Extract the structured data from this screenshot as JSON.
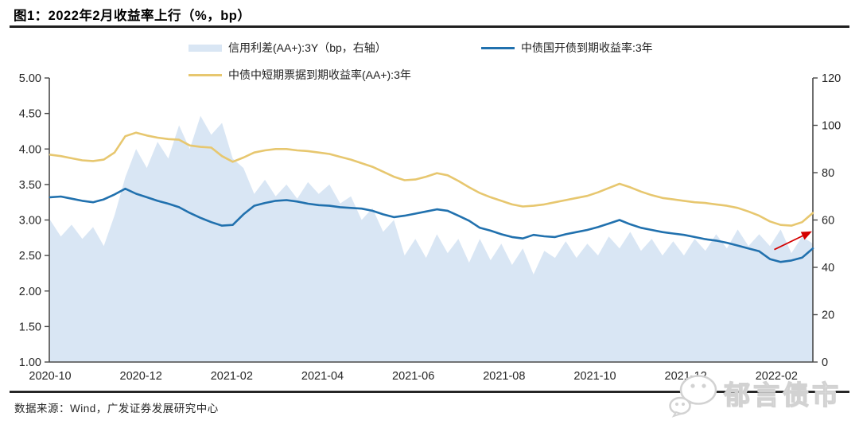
{
  "header": {
    "title": "图1：2022年2月收益率上行（%，bp）"
  },
  "legend": [
    {
      "id": "spread",
      "label": "信用利差(AA+):3Y（bp，右轴）",
      "swatch": "area",
      "color": "#d9e6f4"
    },
    {
      "id": "cdb",
      "label": "中债国开债到期收益率:3年",
      "swatch": "line",
      "color": "#2171ae"
    },
    {
      "id": "mtn",
      "label": "中债中短期票据到期收益率(AA+):3年",
      "swatch": "line",
      "color": "#e7c76f"
    }
  ],
  "footer": {
    "source": "数据来源：Wind，广发证券发展研究中心",
    "watermark": "郁言债市"
  },
  "chart_data": {
    "type": "area+line combo",
    "title": "2022年2月收益率上行（%，bp）",
    "x_tick_labels": [
      "2020-10",
      "2020-12",
      "2021-02",
      "2021-04",
      "2021-06",
      "2021-08",
      "2021-10",
      "2021-12",
      "2022-02"
    ],
    "x_range_months": [
      0,
      16.8
    ],
    "left_axis": {
      "ticks": [
        "5.00",
        "4.50",
        "4.00",
        "3.50",
        "3.00",
        "2.50",
        "2.00",
        "1.50",
        "1.00"
      ],
      "min": 1.0,
      "max": 5.0
    },
    "right_axis": {
      "ticks": [
        "120",
        "100",
        "80",
        "60",
        "40",
        "20",
        "0"
      ],
      "min": 0,
      "max": 120
    },
    "grid": "off",
    "legend_position": "top",
    "axis_color": "#4a4a4a",
    "label_color": "#262626",
    "series": [
      {
        "name": "信用利差(AA+):3Y（bp，右轴）",
        "type": "area",
        "axis": "right",
        "color": "#d9e6f4",
        "values": [
          60,
          53,
          58,
          52,
          57,
          49,
          62,
          78,
          90,
          82,
          93,
          86,
          100,
          90,
          104,
          96,
          101,
          86,
          82,
          71,
          77,
          70,
          75,
          69,
          76,
          71,
          75,
          67,
          70,
          60,
          65,
          55,
          60,
          45,
          52,
          44,
          54,
          46,
          52,
          42,
          52,
          43,
          50,
          41,
          48,
          37,
          47,
          44,
          51,
          44,
          50,
          45,
          53,
          48,
          55,
          47,
          52,
          45,
          51,
          45,
          52,
          47,
          54,
          48,
          56,
          49,
          54,
          49,
          56,
          46,
          53,
          50
        ]
      },
      {
        "name": "中债国开债到期收益率:3年",
        "type": "line",
        "axis": "left",
        "color": "#2171ae",
        "values": [
          3.32,
          3.33,
          3.3,
          3.27,
          3.25,
          3.29,
          3.36,
          3.44,
          3.37,
          3.32,
          3.27,
          3.23,
          3.18,
          3.1,
          3.03,
          2.97,
          2.92,
          2.93,
          3.08,
          3.2,
          3.24,
          3.27,
          3.28,
          3.26,
          3.23,
          3.21,
          3.2,
          3.18,
          3.17,
          3.16,
          3.13,
          3.08,
          3.04,
          3.06,
          3.09,
          3.12,
          3.15,
          3.13,
          3.06,
          2.99,
          2.89,
          2.85,
          2.8,
          2.76,
          2.74,
          2.79,
          2.77,
          2.76,
          2.8,
          2.83,
          2.86,
          2.9,
          2.95,
          3.0,
          2.94,
          2.89,
          2.86,
          2.83,
          2.81,
          2.79,
          2.76,
          2.73,
          2.71,
          2.68,
          2.64,
          2.6,
          2.56,
          2.45,
          2.41,
          2.43,
          2.47,
          2.6
        ]
      },
      {
        "name": "中债中短期票据到期收益率(AA+):3年",
        "type": "line",
        "axis": "left",
        "color": "#e7c76f",
        "values": [
          3.92,
          3.9,
          3.87,
          3.84,
          3.83,
          3.85,
          3.95,
          4.18,
          4.23,
          4.19,
          4.16,
          4.14,
          4.13,
          4.05,
          4.03,
          4.02,
          3.9,
          3.82,
          3.88,
          3.95,
          3.98,
          4.0,
          4.0,
          3.98,
          3.97,
          3.95,
          3.93,
          3.89,
          3.85,
          3.8,
          3.75,
          3.68,
          3.61,
          3.56,
          3.57,
          3.61,
          3.66,
          3.63,
          3.55,
          3.46,
          3.38,
          3.32,
          3.27,
          3.22,
          3.19,
          3.2,
          3.22,
          3.25,
          3.28,
          3.31,
          3.34,
          3.39,
          3.45,
          3.51,
          3.46,
          3.4,
          3.35,
          3.31,
          3.29,
          3.27,
          3.25,
          3.24,
          3.22,
          3.2,
          3.17,
          3.12,
          3.06,
          2.98,
          2.93,
          2.92,
          2.97,
          3.1
        ]
      }
    ],
    "annotation": {
      "type": "arrow",
      "color": "#d40000",
      "from_month": 15.95,
      "from_bp": 47.5,
      "to_month": 16.78,
      "to_bp": 55.2
    }
  }
}
